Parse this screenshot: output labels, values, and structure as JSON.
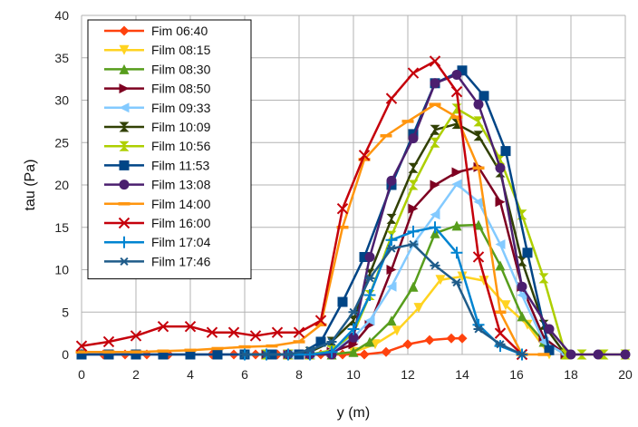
{
  "chart_data": {
    "type": "line",
    "title": "",
    "xlabel": "y (m)",
    "ylabel": "tau (Pa)",
    "xlim": [
      0,
      20
    ],
    "ylim": [
      0,
      40
    ],
    "x_ticks": [
      0,
      2,
      4,
      6,
      8,
      10,
      12,
      14,
      16,
      18,
      20
    ],
    "y_ticks": [
      0,
      5,
      10,
      15,
      20,
      25,
      30,
      35,
      40
    ],
    "grid": true,
    "legend_position": "top-left",
    "series": [
      {
        "name": "Fim 06:40",
        "color": "#ff420e",
        "marker": "diamond",
        "x": [
          0,
          0.8,
          1.6,
          2.4,
          3.2,
          4,
          4.8,
          5.6,
          6.4,
          7.2,
          8,
          8.8,
          9.6,
          10.4,
          11.2,
          12,
          12.8,
          13.6,
          14
        ],
        "y": [
          0,
          0,
          0,
          0,
          0,
          0,
          0,
          0,
          0,
          0,
          0,
          0,
          0,
          0,
          0.3,
          1.2,
          1.7,
          1.9,
          1.9
        ]
      },
      {
        "name": "Film 08:15",
        "color": "#ffd320",
        "marker": "triangle-down",
        "x": [
          6,
          6.8,
          7.6,
          8.4,
          9.2,
          10,
          10.8,
          11.6,
          12.4,
          13.2,
          14,
          14.8,
          15.6,
          16.4,
          17.2
        ],
        "y": [
          0,
          0,
          0,
          0,
          0,
          0.3,
          1.2,
          2.8,
          5.5,
          8.8,
          9.2,
          8.7,
          5.8,
          3.5,
          0
        ]
      },
      {
        "name": "Film 08:30",
        "color": "#579d1c",
        "marker": "triangle-up",
        "x": [
          6,
          6.8,
          7.6,
          8.4,
          9.2,
          10,
          10.6,
          11.4,
          12.2,
          13,
          13.8,
          14.6,
          15.4,
          16.2,
          17,
          17.8
        ],
        "y": [
          0,
          0,
          0,
          0,
          0,
          0.3,
          1.5,
          4,
          8,
          14.3,
          15.2,
          15.3,
          10.5,
          4.5,
          1.5,
          0
        ]
      },
      {
        "name": "Film 08:50",
        "color": "#7e0021",
        "marker": "triangle-right",
        "x": [
          6,
          6.8,
          7.6,
          8.4,
          9.2,
          10,
          10.6,
          11.4,
          12.2,
          13,
          13.8,
          14.6,
          15.4,
          16.2,
          17,
          17.8
        ],
        "y": [
          0,
          0,
          0,
          0,
          0.3,
          1.2,
          3.5,
          10,
          17.2,
          20,
          21.5,
          22.1,
          18,
          8,
          2,
          0
        ]
      },
      {
        "name": "Film 09:33",
        "color": "#83caff",
        "marker": "triangle-left",
        "x": [
          0,
          1,
          2,
          3,
          4,
          5,
          6,
          7,
          7.6,
          8.4,
          9.2,
          10,
          10.6,
          11.4,
          12.2,
          13,
          13.8,
          14.6,
          15.4,
          16.2,
          17,
          17.8
        ],
        "y": [
          0,
          0,
          0,
          0,
          0,
          0,
          0,
          0,
          0,
          0,
          0.5,
          2,
          4,
          8,
          13,
          16.5,
          20.1,
          18,
          13,
          7,
          1.5,
          0
        ]
      },
      {
        "name": "Film 10:09",
        "color": "#314004",
        "marker": "bowtie",
        "x": [
          6,
          6.8,
          7.6,
          8.4,
          9.2,
          10,
          10.6,
          11.4,
          12.2,
          13,
          13.8,
          14.6,
          15.4,
          16.2,
          17,
          17.8
        ],
        "y": [
          0,
          0,
          0,
          0.3,
          1.5,
          4,
          9.5,
          16,
          22,
          26.5,
          27.2,
          25.8,
          21.5,
          11,
          3.5,
          0
        ]
      },
      {
        "name": "Film 10:56",
        "color": "#aecf00",
        "marker": "hourglass",
        "x": [
          6,
          6.8,
          7.6,
          8.4,
          9.2,
          10,
          10.6,
          11.4,
          12.2,
          13,
          13.8,
          14.6,
          15.4,
          16.2,
          17,
          17.8,
          18.4,
          19.2,
          20
        ],
        "y": [
          0,
          0,
          0,
          0,
          0.5,
          2.5,
          7,
          14,
          20,
          25,
          29,
          27.5,
          23,
          16.5,
          9,
          0,
          0,
          0,
          0
        ]
      },
      {
        "name": "Film 11:53",
        "color": "#004586",
        "marker": "square",
        "x": [
          0,
          1,
          2,
          3,
          4,
          5,
          6,
          7,
          8,
          8.8,
          9.6,
          10.4,
          11.4,
          12.2,
          13,
          14,
          14.8,
          15.6,
          16.4,
          17.2
        ],
        "y": [
          0,
          0,
          0,
          0,
          0,
          0,
          0,
          0,
          0,
          1.5,
          6.2,
          11.5,
          20,
          26,
          32,
          33.5,
          30.5,
          24,
          12,
          0.5
        ]
      },
      {
        "name": "Film 13:08",
        "color": "#4b1f6f",
        "marker": "circle",
        "x": [
          7.6,
          8.4,
          9.2,
          10,
          10.6,
          11.4,
          12.2,
          13,
          13.8,
          14.6,
          15.4,
          16.2,
          17.2,
          18,
          19,
          20
        ],
        "y": [
          0,
          0,
          0,
          2,
          11.5,
          20.5,
          25.5,
          32,
          33,
          29.5,
          22,
          8,
          3,
          0,
          0,
          0
        ]
      },
      {
        "name": "Film 14:00",
        "color": "#ff950e",
        "marker": "plus-h",
        "x": [
          0,
          1,
          2,
          3,
          4,
          5,
          6,
          7,
          8,
          8.8,
          9.6,
          10.4,
          11.2,
          12,
          13,
          13.8,
          14.6,
          15.4,
          16.2,
          17
        ],
        "y": [
          0.3,
          0.3,
          0.3,
          0.4,
          0.5,
          0.7,
          0.9,
          1,
          1.5,
          3.5,
          15,
          23,
          25.8,
          27.5,
          29.5,
          28,
          22,
          5,
          0,
          0
        ]
      },
      {
        "name": "Film 16:00",
        "color": "#c5000b",
        "marker": "x",
        "x": [
          0,
          1,
          2,
          3,
          4,
          4.8,
          5.6,
          6.4,
          7.2,
          8,
          8.8,
          9.6,
          10.4,
          11.4,
          12.2,
          13,
          13.8,
          14.6,
          15.4,
          16.2
        ],
        "y": [
          1,
          1.5,
          2.2,
          3.3,
          3.3,
          2.6,
          2.6,
          2.2,
          2.6,
          2.6,
          4,
          17.2,
          23.5,
          30.2,
          33.2,
          34.6,
          31,
          11.5,
          2.5,
          0
        ]
      },
      {
        "name": "Film 17:04",
        "color": "#0084d1",
        "marker": "plus",
        "x": [
          6,
          6.8,
          7.6,
          8.4,
          9.2,
          10,
          10.6,
          11.4,
          12.2,
          13,
          13.8,
          14.6,
          15.4,
          16.2
        ],
        "y": [
          0,
          0,
          0,
          0,
          0.3,
          3,
          7,
          13.5,
          14.5,
          15,
          12,
          3.5,
          1,
          0
        ]
      },
      {
        "name": "Film 17:46",
        "color": "#1f5c8a",
        "marker": "asterisk",
        "x": [
          6,
          6.8,
          7.6,
          8.4,
          9.2,
          10,
          10.6,
          11.4,
          12.2,
          13,
          13.8,
          14.6,
          15.4,
          16.2
        ],
        "y": [
          0,
          0,
          0,
          0.5,
          1.5,
          5,
          9,
          12.5,
          13,
          10.5,
          8.5,
          3,
          1.2,
          0
        ]
      }
    ]
  }
}
